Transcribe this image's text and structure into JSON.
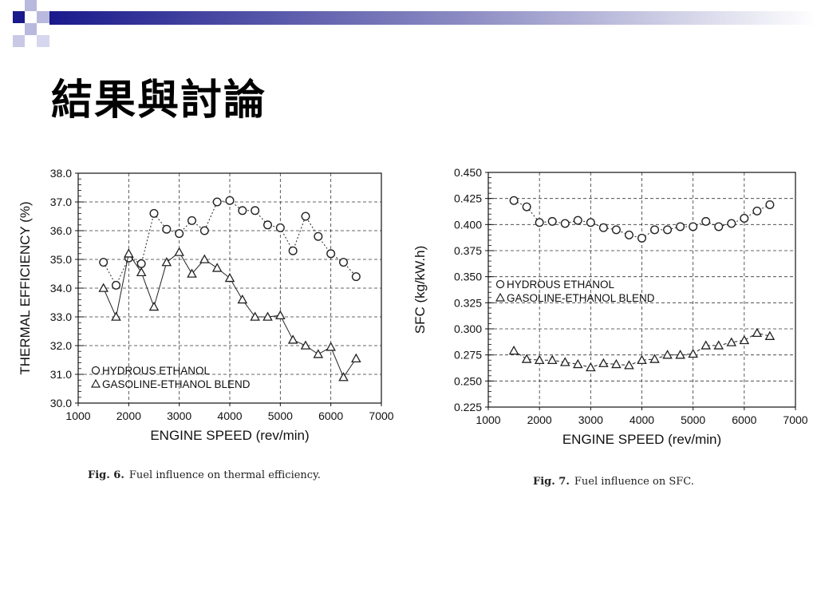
{
  "slide": {
    "title": "結果與討論",
    "accent_color": "#1a1a8c"
  },
  "captions": [
    {
      "label": "Fig. 6.",
      "text": "Fuel influence on thermal efficiency."
    },
    {
      "label": "Fig. 7.",
      "text": "Fuel influence on SFC."
    }
  ],
  "chart_data": [
    {
      "type": "line",
      "title": "",
      "xlabel": "ENGINE SPEED (rev/min)",
      "ylabel": "THERMAL EFFICIENCY (%)",
      "xlim": [
        1000,
        7000
      ],
      "ylim": [
        30.0,
        38.0
      ],
      "xticks": [
        "1000",
        "2000",
        "3000",
        "4000",
        "5000",
        "6000",
        "7000"
      ],
      "yticks": [
        "30.0",
        "31.0",
        "32.0",
        "33.0",
        "34.0",
        "35.0",
        "36.0",
        "37.0",
        "38.0"
      ],
      "grid": "dashed",
      "legend_position": "bottom-left",
      "series": [
        {
          "name": "HYDROUS ETHANOL",
          "marker": "circle",
          "line_style": "dotted",
          "x": [
            1500,
            1750,
            2000,
            2250,
            2500,
            2750,
            3000,
            3250,
            3500,
            3750,
            4000,
            4250,
            4500,
            4750,
            5000,
            5250,
            5500,
            5750,
            6000,
            6250,
            6500
          ],
          "y": [
            34.9,
            34.1,
            35.05,
            34.85,
            36.6,
            36.05,
            35.9,
            36.35,
            36.0,
            37.0,
            37.05,
            36.7,
            36.7,
            36.2,
            36.1,
            35.3,
            36.5,
            35.8,
            35.2,
            34.9,
            34.4
          ]
        },
        {
          "name": "GASOLINE-ETHANOL BLEND",
          "marker": "triangle",
          "line_style": "solid",
          "x": [
            1500,
            1750,
            2000,
            2250,
            2500,
            2750,
            3000,
            3250,
            3500,
            3750,
            4000,
            4250,
            4500,
            4750,
            5000,
            5250,
            5500,
            5750,
            6000,
            6250,
            6500
          ],
          "y": [
            34.0,
            33.0,
            35.2,
            34.55,
            33.35,
            34.9,
            35.25,
            34.5,
            35.0,
            34.7,
            34.35,
            33.6,
            33.0,
            33.0,
            33.05,
            32.2,
            32.0,
            31.7,
            31.95,
            30.9,
            31.55
          ]
        }
      ]
    },
    {
      "type": "line",
      "title": "",
      "xlabel": "ENGINE SPEED (rev/min)",
      "ylabel": "SFC (kg/kW.h)",
      "xlim": [
        1000,
        7000
      ],
      "ylim": [
        0.225,
        0.45
      ],
      "xticks": [
        "1000",
        "2000",
        "3000",
        "4000",
        "5000",
        "6000",
        "7000"
      ],
      "yticks": [
        "0.225",
        "0.250",
        "0.275",
        "0.300",
        "0.325",
        "0.350",
        "0.375",
        "0.400",
        "0.425",
        "0.450"
      ],
      "grid": "dashed",
      "legend_position": "middle-left",
      "series": [
        {
          "name": "HYDROUS ETHANOL",
          "marker": "circle",
          "line_style": "dotted",
          "x": [
            1500,
            1750,
            2000,
            2250,
            2500,
            2750,
            3000,
            3250,
            3500,
            3750,
            4000,
            4250,
            4500,
            4750,
            5000,
            5250,
            5500,
            5750,
            6000,
            6250,
            6500
          ],
          "y": [
            0.423,
            0.417,
            0.402,
            0.403,
            0.401,
            0.404,
            0.402,
            0.397,
            0.395,
            0.39,
            0.387,
            0.395,
            0.395,
            0.398,
            0.398,
            0.403,
            0.398,
            0.401,
            0.406,
            0.413,
            0.419
          ]
        },
        {
          "name": "GASOLINE-ETHANOL BLEND",
          "marker": "triangle",
          "line_style": "dashed",
          "x": [
            1500,
            1750,
            2000,
            2250,
            2500,
            2750,
            3000,
            3250,
            3500,
            3750,
            4000,
            4250,
            4500,
            4750,
            5000,
            5250,
            5500,
            5750,
            6000,
            6250,
            6500
          ],
          "y": [
            0.279,
            0.271,
            0.27,
            0.27,
            0.268,
            0.266,
            0.263,
            0.267,
            0.266,
            0.265,
            0.27,
            0.271,
            0.275,
            0.275,
            0.276,
            0.284,
            0.284,
            0.287,
            0.289,
            0.296,
            0.293
          ]
        }
      ]
    }
  ]
}
